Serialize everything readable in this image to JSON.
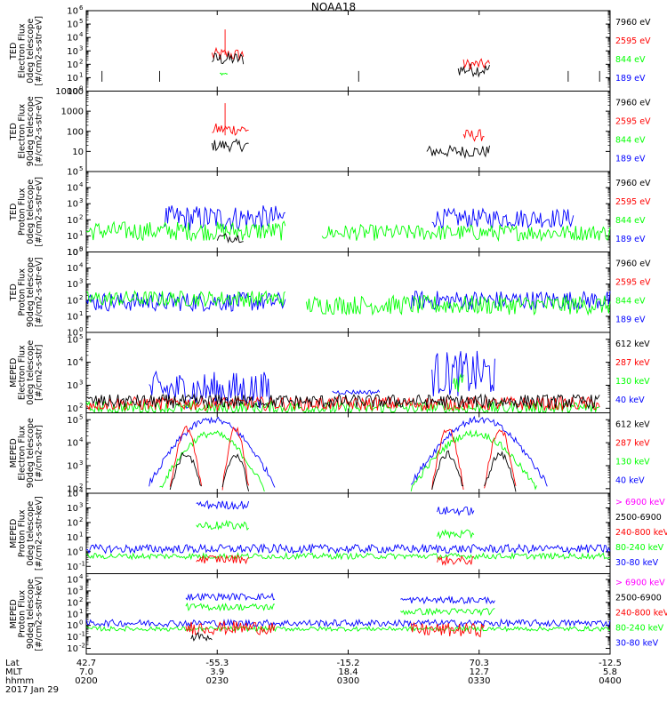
{
  "chart_data": {
    "title": "NOAA18",
    "date_label": "2017 Jan 29",
    "xaxis": {
      "row_labels": [
        "Lat",
        "MLT",
        "hhmm"
      ],
      "ticks": [
        {
          "Lat": "42.7",
          "MLT": "7.0",
          "hhmm": "0200"
        },
        {
          "Lat": "-55.3",
          "MLT": "3.9",
          "hhmm": "0230"
        },
        {
          "Lat": "-15.2",
          "MLT": "18.4",
          "hhmm": "0300"
        },
        {
          "Lat": "70.3",
          "MLT": "12.7",
          "hhmm": "0330"
        },
        {
          "Lat": "-12.5",
          "MLT": "5.8",
          "hhmm": "0400"
        }
      ]
    },
    "panels": [
      {
        "type": "line",
        "ylabel": [
          "TED",
          "Electron Flux",
          "0deg telescope",
          "[#/cm2-s-str-eV]"
        ],
        "yscale": "log",
        "ytick_format": "power",
        "ytick_exponents": [
          0,
          1,
          2,
          3,
          4,
          5,
          6
        ],
        "ylim_exp": [
          0,
          6
        ],
        "legend": [
          {
            "name": "7960 eV",
            "color": "#000000"
          },
          {
            "name": "2595 eV",
            "color": "#ff0000"
          },
          {
            "name": "844 eV",
            "color": "#00ff00"
          },
          {
            "name": "189 eV",
            "color": "#0000ff"
          }
        ],
        "series": [
          {
            "color": "#ff0000",
            "segments": [
              [
                0.24,
                0.3,
                2.7,
                0.5
              ]
            ],
            "spike": [
              0.265,
              4.6
            ]
          },
          {
            "color": "#000000",
            "segments": [
              [
                0.24,
                0.3,
                2.4,
                0.5
              ],
              [
                0.71,
                0.77,
                1.6,
                0.5
              ]
            ],
            "blips": [
              0.03,
              0.14,
              0.52,
              0.92,
              0.98
            ],
            "blip_level": 1.1
          },
          {
            "color": "#00ff00",
            "segments": [
              [
                0.255,
                0.27,
                1.3,
                0.1
              ]
            ]
          },
          {
            "color": "#ff0000",
            "segments": [
              [
                0.72,
                0.77,
                2.0,
                0.4
              ]
            ]
          }
        ]
      },
      {
        "type": "line",
        "ylabel": [
          "TED",
          "Electron Flux",
          "90deg telescope",
          "[#/cm2-s-str-eV]"
        ],
        "yscale": "log",
        "ytick_format": "plain",
        "ytick_labels": [
          "10",
          "100",
          "1000",
          "10000"
        ],
        "ytick_exponents": [
          1,
          2,
          3,
          4
        ],
        "ylim_exp": [
          0,
          4
        ],
        "legend": [
          {
            "name": "7960 eV",
            "color": "#000000"
          },
          {
            "name": "2595 eV",
            "color": "#ff0000"
          },
          {
            "name": "844 eV",
            "color": "#00ff00"
          },
          {
            "name": "189 eV",
            "color": "#0000ff"
          }
        ],
        "series": [
          {
            "color": "#000000",
            "segments": [
              [
                0.24,
                0.31,
                1.3,
                0.3
              ],
              [
                0.65,
                0.77,
                1.0,
                0.3
              ]
            ]
          },
          {
            "color": "#ff0000",
            "segments": [
              [
                0.24,
                0.31,
                2.1,
                0.3
              ],
              [
                0.72,
                0.76,
                1.8,
                0.3
              ]
            ],
            "spike": [
              0.265,
              3.4
            ]
          }
        ]
      },
      {
        "type": "line",
        "ylabel": [
          "TED",
          "Proton Flux",
          "0deg telescope",
          "[#/cm2-s-str-eV]"
        ],
        "yscale": "log",
        "ytick_format": "power",
        "ytick_exponents": [
          0,
          1,
          2,
          3,
          4,
          5
        ],
        "ylim_exp": [
          0,
          5
        ],
        "legend": [
          {
            "name": "7960 eV",
            "color": "#000000"
          },
          {
            "name": "2595 eV",
            "color": "#ff0000"
          },
          {
            "name": "844 eV",
            "color": "#00ff00"
          },
          {
            "name": "189 eV",
            "color": "#0000ff"
          }
        ],
        "series": [
          {
            "color": "#0000ff",
            "segments": [
              [
                0.15,
                0.38,
                2.1,
                0.8
              ],
              [
                0.66,
                0.93,
                2.1,
                0.6
              ]
            ]
          },
          {
            "color": "#00ff00",
            "segments": [
              [
                0.0,
                0.38,
                1.3,
                0.6
              ],
              [
                0.45,
                1.0,
                1.2,
                0.5
              ]
            ]
          },
          {
            "color": "#000000",
            "segments": [
              [
                0.25,
                0.3,
                0.9,
                0.3
              ]
            ]
          }
        ]
      },
      {
        "type": "line",
        "ylabel": [
          "TED",
          "Proton Flux",
          "90deg telescope",
          "[#/cm2-s-str-eV]"
        ],
        "yscale": "log",
        "ytick_format": "power",
        "ytick_exponents": [
          0,
          1,
          2,
          3,
          4,
          5
        ],
        "ylim_exp": [
          0,
          5
        ],
        "legend": [
          {
            "name": "7960 eV",
            "color": "#000000"
          },
          {
            "name": "2595 eV",
            "color": "#ff0000"
          },
          {
            "name": "844 eV",
            "color": "#00ff00"
          },
          {
            "name": "189 eV",
            "color": "#0000ff"
          }
        ],
        "series": [
          {
            "color": "#0000ff",
            "segments": [
              [
                0.0,
                0.38,
                1.9,
                0.6
              ],
              [
                0.62,
                1.0,
                2.0,
                0.6
              ]
            ]
          },
          {
            "color": "#00ff00",
            "segments": [
              [
                0.0,
                0.38,
                2.1,
                0.5
              ],
              [
                0.42,
                1.0,
                1.7,
                0.6
              ]
            ]
          }
        ]
      },
      {
        "type": "line",
        "ylabel": [
          "MEPED",
          "Electron Flux",
          "0deg telescope",
          "[#/cm2-s-str]"
        ],
        "yscale": "log",
        "ytick_format": "power",
        "ytick_exponents": [
          2,
          3,
          4,
          5
        ],
        "ylim_exp": [
          1.8,
          5.3
        ],
        "legend": [
          {
            "name": "612 keV",
            "color": "#000000"
          },
          {
            "name": "287 keV",
            "color": "#ff0000"
          },
          {
            "name": "130 keV",
            "color": "#00ff00"
          },
          {
            "name": "40 keV",
            "color": "#0000ff"
          }
        ],
        "series": [
          {
            "color": "#0000ff",
            "segments": [
              [
                0.12,
                0.35,
                2.8,
                0.8
              ],
              [
                0.47,
                0.56,
                2.7,
                0.1
              ],
              [
                0.66,
                0.78,
                3.5,
                1.0
              ]
            ]
          },
          {
            "color": "#00ff00",
            "segments": [
              [
                0.0,
                0.98,
                2.0,
                0.3
              ],
              [
                0.7,
                0.72,
                3.2,
                0.5
              ]
            ]
          },
          {
            "color": "#ff0000",
            "segments": [
              [
                0.0,
                0.98,
                2.2,
                0.3
              ]
            ]
          },
          {
            "color": "#000000",
            "segments": [
              [
                0.0,
                0.98,
                2.3,
                0.3
              ]
            ]
          }
        ]
      },
      {
        "type": "line",
        "ylabel": [
          "MEPED",
          "Electron Flux",
          "90deg telescope",
          "[#/cm2-s-str]"
        ],
        "yscale": "log",
        "ytick_format": "power",
        "ytick_exponents": [
          2,
          3,
          4,
          5
        ],
        "ylim_exp": [
          1.8,
          5.3
        ],
        "legend": [
          {
            "name": "612 keV",
            "color": "#000000"
          },
          {
            "name": "287 keV",
            "color": "#ff0000"
          },
          {
            "name": "130 keV",
            "color": "#00ff00"
          },
          {
            "name": "40 keV",
            "color": "#0000ff"
          }
        ],
        "series": [
          {
            "color": "#0000ff",
            "hump": [
              [
                0.12,
                0.36,
                5.0
              ],
              [
                0.62,
                0.88,
                5.0
              ]
            ],
            "base": 2.2
          },
          {
            "color": "#00ff00",
            "hump": [
              [
                0.14,
                0.34,
                4.4
              ],
              [
                0.62,
                0.86,
                4.4
              ]
            ],
            "base": 2.0
          },
          {
            "color": "#ff0000",
            "hump": [
              [
                0.16,
                0.22,
                4.6
              ],
              [
                0.26,
                0.31,
                4.6
              ],
              [
                0.66,
                0.72,
                4.6
              ],
              [
                0.76,
                0.82,
                4.6
              ]
            ],
            "base": 2.0
          },
          {
            "color": "#000000",
            "hump": [
              [
                0.16,
                0.22,
                3.5
              ],
              [
                0.26,
                0.31,
                3.5
              ],
              [
                0.66,
                0.72,
                3.5
              ],
              [
                0.76,
                0.82,
                3.5
              ]
            ],
            "base": 2.0
          }
        ]
      },
      {
        "type": "line",
        "ylabel": [
          "MEPED",
          "Proton Flux",
          "0deg telescope",
          "[#/cm2-s-str-keV]"
        ],
        "yscale": "log",
        "ytick_format": "power",
        "ytick_exponents": [
          -1,
          0,
          1,
          2,
          3,
          4
        ],
        "ylim_exp": [
          -1.5,
          4
        ],
        "legend": [
          {
            "name": "> 6900 keV",
            "color": "#ff00ff"
          },
          {
            "name": "2500-6900",
            "color": "#000000"
          },
          {
            "name": "240-800 keV",
            "color": "#ff0000"
          },
          {
            "name": "80-240 keV",
            "color": "#00ff00"
          },
          {
            "name": "30-80 keV",
            "color": "#0000ff"
          }
        ],
        "series": [
          {
            "color": "#0000ff",
            "segments": [
              [
                0.0,
                1.0,
                0.2,
                0.3
              ]
            ],
            "plateau": [
              [
                0.21,
                0.31,
                3.2
              ],
              [
                0.67,
                0.74,
                2.8
              ]
            ]
          },
          {
            "color": "#00ff00",
            "segments": [
              [
                0.0,
                1.0,
                -0.3,
                0.2
              ]
            ],
            "plateau": [
              [
                0.21,
                0.31,
                1.8
              ],
              [
                0.67,
                0.74,
                1.2
              ]
            ]
          },
          {
            "color": "#ff0000",
            "segments": [
              [
                0.21,
                0.31,
                -0.5,
                0.3
              ],
              [
                0.67,
                0.74,
                -0.6,
                0.3
              ]
            ]
          }
        ]
      },
      {
        "type": "line",
        "ylabel": [
          "MEPED",
          "Proton Flux",
          "90deg telescope",
          "[#/cm2-s-str-keV]"
        ],
        "yscale": "log",
        "ytick_format": "power",
        "ytick_exponents": [
          -2,
          -1,
          0,
          1,
          2,
          3,
          4
        ],
        "ylim_exp": [
          -2.5,
          4.5
        ],
        "legend": [
          {
            "name": "> 6900 keV",
            "color": "#ff00ff"
          },
          {
            "name": "2500-6900",
            "color": "#000000"
          },
          {
            "name": "240-800 keV",
            "color": "#ff0000"
          },
          {
            "name": "80-240 keV",
            "color": "#00ff00"
          },
          {
            "name": "30-80 keV",
            "color": "#0000ff"
          }
        ],
        "series": [
          {
            "color": "#0000ff",
            "segments": [
              [
                0.0,
                1.0,
                0.2,
                0.3
              ]
            ],
            "plateau": [
              [
                0.19,
                0.36,
                2.5
              ],
              [
                0.6,
                0.78,
                2.2
              ]
            ]
          },
          {
            "color": "#00ff00",
            "segments": [
              [
                0.0,
                1.0,
                -0.3,
                0.2
              ]
            ],
            "plateau": [
              [
                0.19,
                0.36,
                1.6
              ],
              [
                0.6,
                0.78,
                1.2
              ]
            ]
          },
          {
            "color": "#ff0000",
            "segments": [
              [
                0.19,
                0.36,
                -0.2,
                0.6
              ],
              [
                0.62,
                0.76,
                -0.4,
                0.6
              ]
            ]
          },
          {
            "color": "#000000",
            "segments": [
              [
                0.2,
                0.24,
                -1.0,
                0.4
              ]
            ]
          }
        ]
      }
    ]
  }
}
